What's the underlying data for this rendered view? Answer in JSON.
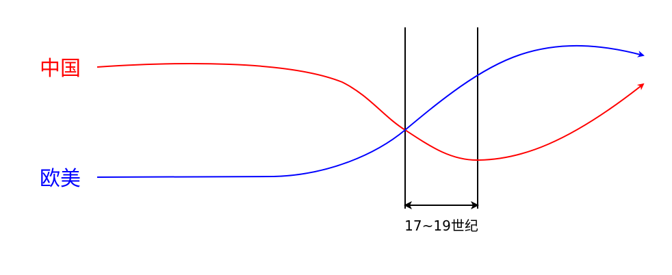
{
  "curves": {
    "china": {
      "label": "中国",
      "color": "#ff0000"
    },
    "west": {
      "label": "欧美",
      "color": "#0000ff"
    }
  },
  "period": {
    "label": "17~19世纪",
    "color": "#000000"
  }
}
